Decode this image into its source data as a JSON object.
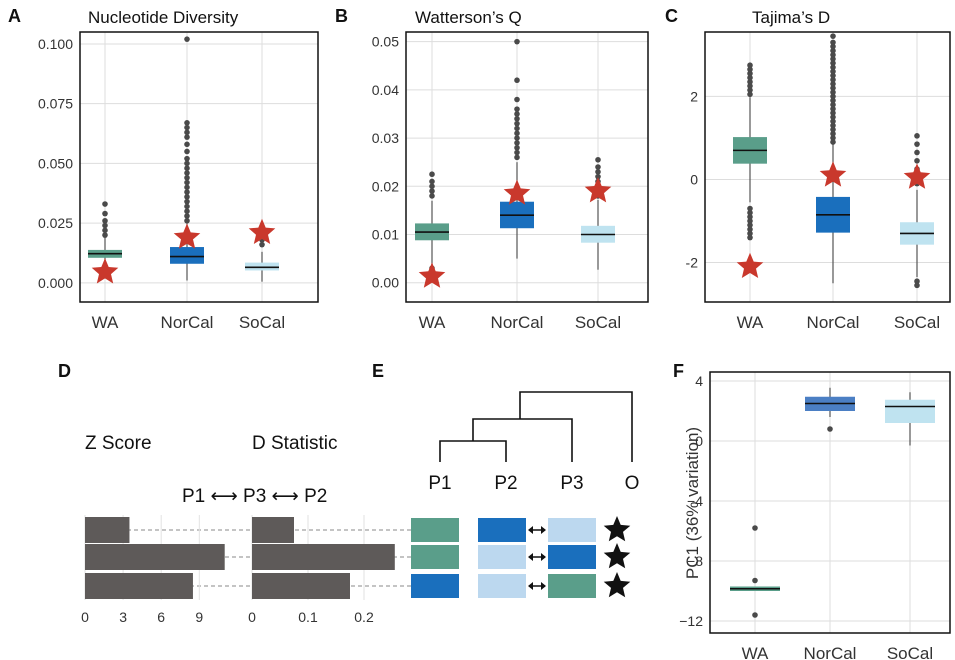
{
  "colors": {
    "wa": "#5a9e8a",
    "norcal": "#1a6fbd",
    "socal": "#bfe3f0",
    "star": "#c9382c",
    "bar": "#5e5a59",
    "pc_wa": "#5a9e8a",
    "pc_norcal": "#4b7fc4",
    "pc_socal": "#bfe3f0",
    "e_norcal_light": "#bcd8ef"
  },
  "chart_data": [
    {
      "panel": "A",
      "type": "box",
      "title": "Nucleotide Diversity",
      "categories": [
        "WA",
        "NorCal",
        "SoCal"
      ],
      "ylim": [
        -0.008,
        0.105
      ],
      "yticks": [
        0.0,
        0.025,
        0.05,
        0.075,
        0.1
      ],
      "ytick_labels": [
        "0.000",
        "0.025",
        "0.050",
        "0.075",
        "0.100"
      ],
      "boxes": [
        {
          "q1": 0.0105,
          "median": 0.0122,
          "q3": 0.0138,
          "wlo": 0.0065,
          "whi": 0.019
        },
        {
          "q1": 0.008,
          "median": 0.011,
          "q3": 0.015,
          "wlo": 0.001,
          "whi": 0.025
        },
        {
          "q1": 0.0052,
          "median": 0.0065,
          "q3": 0.0085,
          "wlo": 0.0005,
          "whi": 0.013
        }
      ],
      "outliers": [
        [
          0.02,
          0.022,
          0.024,
          0.026,
          0.029,
          0.033,
          0.004,
          0.003
        ],
        [
          0.026,
          0.028,
          0.03,
          0.032,
          0.034,
          0.036,
          0.038,
          0.04,
          0.042,
          0.044,
          0.046,
          0.048,
          0.05,
          0.052,
          0.055,
          0.058,
          0.061,
          0.063,
          0.065,
          0.067,
          0.102
        ],
        [
          0.016,
          0.018,
          0.02
        ]
      ],
      "stars": [
        0.0045,
        0.019,
        0.021
      ]
    },
    {
      "panel": "B",
      "type": "box",
      "title": "Watterson’s Q",
      "categories": [
        "WA",
        "NorCal",
        "SoCal"
      ],
      "ylim": [
        -0.004,
        0.052
      ],
      "yticks": [
        0.0,
        0.01,
        0.02,
        0.03,
        0.04,
        0.05
      ],
      "ytick_labels": [
        "0.00",
        "0.01",
        "0.02",
        "0.03",
        "0.04",
        "0.05"
      ],
      "boxes": [
        {
          "q1": 0.0088,
          "median": 0.0105,
          "q3": 0.0123,
          "wlo": 0.0037,
          "whi": 0.017
        },
        {
          "q1": 0.0113,
          "median": 0.014,
          "q3": 0.0168,
          "wlo": 0.005,
          "whi": 0.025
        },
        {
          "q1": 0.0083,
          "median": 0.01,
          "q3": 0.0118,
          "wlo": 0.0027,
          "whi": 0.0172
        }
      ],
      "outliers": [
        [
          0.018,
          0.019,
          0.02,
          0.021,
          0.0225,
          0.003,
          0.0022,
          0.0016
        ],
        [
          0.026,
          0.027,
          0.028,
          0.029,
          0.03,
          0.031,
          0.032,
          0.033,
          0.034,
          0.035,
          0.036,
          0.038,
          0.042,
          0.05
        ],
        [
          0.018,
          0.019,
          0.02,
          0.021,
          0.022,
          0.023,
          0.024,
          0.0255
        ]
      ],
      "stars": [
        0.0013,
        0.0185,
        0.019
      ]
    },
    {
      "panel": "C",
      "type": "box",
      "title": "Tajima’s D",
      "categories": [
        "WA",
        "NorCal",
        "SoCal"
      ],
      "ylim": [
        -2.95,
        3.55
      ],
      "yticks": [
        -2,
        0,
        2
      ],
      "ytick_labels": [
        "-2",
        "0",
        "2"
      ],
      "boxes": [
        {
          "q1": 0.38,
          "median": 0.7,
          "q3": 1.02,
          "wlo": -0.55,
          "whi": 1.98
        },
        {
          "q1": -1.28,
          "median": -0.85,
          "q3": -0.42,
          "wlo": -2.5,
          "whi": 0.85
        },
        {
          "q1": -1.57,
          "median": -1.3,
          "q3": -1.03,
          "wlo": -2.35,
          "whi": -0.25
        }
      ],
      "outliers": [
        [
          2.05,
          2.15,
          2.25,
          2.35,
          2.45,
          2.55,
          2.65,
          2.75,
          -0.7,
          -0.8,
          -0.9,
          -1.0,
          -1.1,
          -1.2,
          -1.3,
          -1.4
        ],
        [
          0.9,
          1.0,
          1.1,
          1.2,
          1.3,
          1.4,
          1.5,
          1.6,
          1.7,
          1.8,
          1.9,
          2.0,
          2.1,
          2.2,
          2.3,
          2.4,
          2.5,
          2.6,
          2.7,
          2.8,
          2.9,
          3.0,
          3.1,
          3.2,
          3.3,
          3.45
        ],
        [
          -0.1,
          0.1,
          0.25,
          0.45,
          0.65,
          0.85,
          1.05,
          -2.45,
          -2.55
        ]
      ],
      "stars": [
        -2.1,
        0.1,
        0.05
      ]
    },
    {
      "panel": "D",
      "type": "bar",
      "orientation": "horizontal",
      "z_label": "Z Score",
      "d_label": "D Statistic",
      "comparison": "P1 ⟷ P3 ⟷ P2",
      "z_values": [
        3.5,
        11.0,
        8.5
      ],
      "d_values": [
        0.075,
        0.255,
        0.175
      ],
      "z_ticks": [
        0,
        3,
        6,
        9
      ],
      "z_tick_labels": [
        "0",
        "3",
        "6",
        "9"
      ],
      "d_ticks": [
        0,
        0.1,
        0.2
      ],
      "d_tick_labels": [
        "0",
        "0.1",
        "0.2"
      ]
    },
    {
      "panel": "E",
      "type": "diagram",
      "leaves": [
        "P1",
        "P2",
        "P3",
        "O"
      ],
      "rows": [
        [
          "wa",
          "norcal",
          "e_norcal_light"
        ],
        [
          "wa",
          "e_norcal_light",
          "norcal"
        ],
        [
          "norcal",
          "e_norcal_light",
          "wa"
        ]
      ]
    },
    {
      "panel": "F",
      "type": "box",
      "ylabel": "PC1 (36% variation)",
      "categories": [
        "WA",
        "NorCal",
        "SoCal"
      ],
      "ylim": [
        -12.8,
        4.6
      ],
      "yticks": [
        -12,
        -8,
        -4,
        0,
        4
      ],
      "ytick_labels": [
        "−12",
        "−8",
        "−4",
        "0",
        "4"
      ],
      "boxes": [
        {
          "q1": -10.0,
          "median": -9.85,
          "q3": -9.7,
          "wlo": -10.0,
          "whi": -9.7
        },
        {
          "q1": 2.0,
          "median": 2.5,
          "q3": 2.95,
          "wlo": 1.6,
          "whi": 3.55
        },
        {
          "q1": 1.2,
          "median": 2.3,
          "q3": 2.75,
          "wlo": -0.3,
          "whi": 3.25
        }
      ],
      "outliers": [
        [
          -5.8,
          -9.3,
          -11.6
        ],
        [
          0.8
        ],
        []
      ]
    }
  ]
}
